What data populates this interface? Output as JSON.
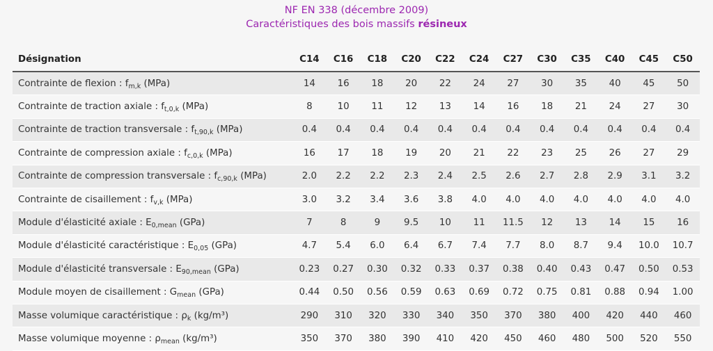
{
  "header": {
    "line1": "NF EN 338 (décembre 2009)",
    "line2_prefix": "Caractéristiques des bois massifs ",
    "line2_bold": "résineux"
  },
  "table": {
    "designation_label": "Désignation",
    "classes": [
      "C14",
      "C16",
      "C18",
      "C20",
      "C22",
      "C24",
      "C27",
      "C30",
      "C35",
      "C40",
      "C45",
      "C50"
    ],
    "rows": [
      {
        "label": "Contrainte de flexion : f",
        "sub": "m,k",
        "unit": " (MPa)",
        "values": [
          "14",
          "16",
          "18",
          "20",
          "22",
          "24",
          "27",
          "30",
          "35",
          "40",
          "45",
          "50"
        ]
      },
      {
        "label": "Contrainte de traction axiale : f",
        "sub": "t,0,k",
        "unit": " (MPa)",
        "values": [
          "8",
          "10",
          "11",
          "12",
          "13",
          "14",
          "16",
          "18",
          "21",
          "24",
          "27",
          "30"
        ]
      },
      {
        "label": "Contrainte de traction transversale : f",
        "sub": "t,90,k",
        "unit": " (MPa)",
        "values": [
          "0.4",
          "0.4",
          "0.4",
          "0.4",
          "0.4",
          "0.4",
          "0.4",
          "0.4",
          "0.4",
          "0.4",
          "0.4",
          "0.4"
        ]
      },
      {
        "label": "Contrainte de compression axiale : f",
        "sub": "c,0,k",
        "unit": " (MPa)",
        "values": [
          "16",
          "17",
          "18",
          "19",
          "20",
          "21",
          "22",
          "23",
          "25",
          "26",
          "27",
          "29"
        ]
      },
      {
        "label": "Contrainte de compression transversale : f",
        "sub": "c,90,k",
        "unit": " (MPa)",
        "values": [
          "2.0",
          "2.2",
          "2.2",
          "2.3",
          "2.4",
          "2.5",
          "2.6",
          "2.7",
          "2.8",
          "2.9",
          "3.1",
          "3.2"
        ]
      },
      {
        "label": "Contrainte de cisaillement : f",
        "sub": "v,k",
        "unit": " (MPa)",
        "values": [
          "3.0",
          "3.2",
          "3.4",
          "3.6",
          "3.8",
          "4.0",
          "4.0",
          "4.0",
          "4.0",
          "4.0",
          "4.0",
          "4.0"
        ]
      },
      {
        "label": "Module d'élasticité axiale : E",
        "sub": "0,mean",
        "unit": " (GPa)",
        "values": [
          "7",
          "8",
          "9",
          "9.5",
          "10",
          "11",
          "11.5",
          "12",
          "13",
          "14",
          "15",
          "16"
        ]
      },
      {
        "label": "Module d'élasticité caractéristique : E",
        "sub": "0,05",
        "unit": " (GPa)",
        "values": [
          "4.7",
          "5.4",
          "6.0",
          "6.4",
          "6.7",
          "7.4",
          "7.7",
          "8.0",
          "8.7",
          "9.4",
          "10.0",
          "10.7"
        ]
      },
      {
        "label": "Module d'élasticité transversale : E",
        "sub": "90,mean",
        "unit": " (GPa)",
        "values": [
          "0.23",
          "0.27",
          "0.30",
          "0.32",
          "0.33",
          "0.37",
          "0.38",
          "0.40",
          "0.43",
          "0.47",
          "0.50",
          "0.53"
        ]
      },
      {
        "label": "Module moyen de cisaillement : G",
        "sub": "mean",
        "unit": " (GPa)",
        "values": [
          "0.44",
          "0.50",
          "0.56",
          "0.59",
          "0.63",
          "0.69",
          "0.72",
          "0.75",
          "0.81",
          "0.88",
          "0.94",
          "1.00"
        ]
      },
      {
        "label": "Masse volumique caractéristique : ρ",
        "sub": "k",
        "unit": " (kg/m³)",
        "values": [
          "290",
          "310",
          "320",
          "330",
          "340",
          "350",
          "370",
          "380",
          "400",
          "420",
          "440",
          "460"
        ]
      },
      {
        "label": "Masse volumique moyenne : ρ",
        "sub": "mean",
        "unit": " (kg/m³)",
        "values": [
          "350",
          "370",
          "380",
          "390",
          "410",
          "420",
          "450",
          "460",
          "480",
          "500",
          "520",
          "550"
        ]
      }
    ]
  }
}
